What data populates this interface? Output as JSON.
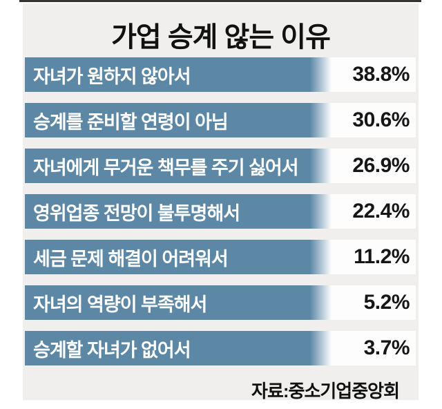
{
  "title": "가업 승계 않는 이유",
  "source": "자료:중소기업중앙회",
  "rows": [
    {
      "label": "자녀가 원하지 않아서",
      "value": "38.8%"
    },
    {
      "label": "승계를 준비할 연령이 아님",
      "value": "30.6%"
    },
    {
      "label": "자녀에게 무거운 책무를 주기 싫어서",
      "value": "26.9%"
    },
    {
      "label": "영위업종 전망이 불투명해서",
      "value": "22.4%"
    },
    {
      "label": "세금 문제 해결이 어려워서",
      "value": "11.2%"
    },
    {
      "label": "자녀의 역량이 부족해서",
      "value": "5.2%"
    },
    {
      "label": "승계할 자녀가 없어서",
      "value": "3.7%"
    }
  ],
  "colors": {
    "bar_blue": "#5c88a6",
    "panel_background": "#f0efed",
    "row_background": "#fdfdfd",
    "top_rule": "#333333",
    "title_text": "#111111",
    "bar_label_text": "#ffffff",
    "value_text": "#161616"
  },
  "chart_data": {
    "type": "bar",
    "orientation": "horizontal",
    "title": "가업 승계 않는 이유",
    "categories": [
      "자녀가 원하지 않아서",
      "승계를 준비할 연령이 아님",
      "자녀에게 무거운 책무를 주기 싫어서",
      "영위업종 전망이 불투명해서",
      "세금 문제 해결이 어려워서",
      "자녀의 역량이 부족해서",
      "승계할 자녀가 없어서"
    ],
    "values": [
      38.8,
      30.6,
      26.9,
      22.4,
      11.2,
      5.2,
      3.7
    ],
    "unit": "%",
    "source": "자료:중소기업중앙회",
    "legend": "none",
    "grid": "off",
    "note": "Bars are drawn at equal decorative length; values shown as text labels at right."
  }
}
